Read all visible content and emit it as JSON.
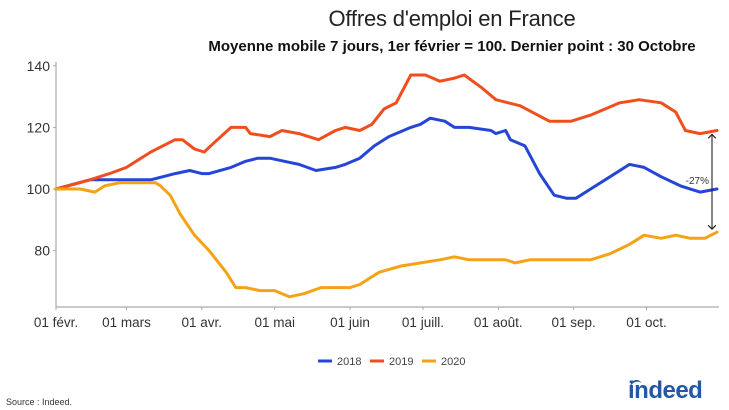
{
  "chart_data": {
    "type": "line",
    "title": "Offres d'emploi en France",
    "subtitle": "Moyenne mobile 7 jours, 1er février = 100. Dernier point : 30 Octobre",
    "xlabel": "",
    "ylabel": "",
    "ylim": [
      62,
      140
    ],
    "yticks": [
      80,
      100,
      120,
      140
    ],
    "ytick_labels": [
      "80",
      "100",
      "120",
      "140"
    ],
    "xlim_days": [
      0,
      272
    ],
    "xticks": [
      {
        "day": 0,
        "label": "01 févr."
      },
      {
        "day": 29,
        "label": "01 mars"
      },
      {
        "day": 60,
        "label": "01 avr."
      },
      {
        "day": 90,
        "label": "01 mai"
      },
      {
        "day": 121,
        "label": "01 juin"
      },
      {
        "day": 151,
        "label": "01 juill."
      },
      {
        "day": 182,
        "label": "01 août."
      },
      {
        "day": 213,
        "label": "01 sep."
      },
      {
        "day": 243,
        "label": "01 oct."
      }
    ],
    "x_unit": "days since 1 Feb",
    "grid": false,
    "legend_position": "bottom",
    "series": [
      {
        "name": "2018",
        "color": "#2445d8",
        "points": [
          [
            0,
            100
          ],
          [
            14,
            103
          ],
          [
            29,
            103
          ],
          [
            39,
            103
          ],
          [
            49,
            105
          ],
          [
            55,
            106
          ],
          [
            60,
            105
          ],
          [
            63,
            105
          ],
          [
            72,
            107
          ],
          [
            78,
            109
          ],
          [
            83,
            110
          ],
          [
            88,
            110
          ],
          [
            94,
            109
          ],
          [
            100,
            108
          ],
          [
            107,
            106
          ],
          [
            115,
            107
          ],
          [
            119,
            108
          ],
          [
            125,
            110
          ],
          [
            131,
            114
          ],
          [
            137,
            117
          ],
          [
            146,
            120
          ],
          [
            150,
            121
          ],
          [
            154,
            123
          ],
          [
            160,
            122
          ],
          [
            164,
            120
          ],
          [
            170,
            120
          ],
          [
            179,
            119
          ],
          [
            181,
            118
          ],
          [
            185,
            119
          ],
          [
            187,
            116
          ],
          [
            193,
            114
          ],
          [
            199,
            105
          ],
          [
            205,
            98
          ],
          [
            210,
            97
          ],
          [
            214,
            97
          ],
          [
            220,
            100
          ],
          [
            228,
            104
          ],
          [
            236,
            108
          ],
          [
            242,
            107
          ],
          [
            249,
            104
          ],
          [
            257,
            101
          ],
          [
            265,
            99
          ],
          [
            272,
            100
          ]
        ]
      },
      {
        "name": "2019",
        "color": "#f04e1c",
        "points": [
          [
            0,
            100
          ],
          [
            14,
            103
          ],
          [
            22,
            105
          ],
          [
            29,
            107
          ],
          [
            39,
            112
          ],
          [
            49,
            116
          ],
          [
            52,
            116
          ],
          [
            57,
            113
          ],
          [
            61,
            112
          ],
          [
            65,
            115
          ],
          [
            72,
            120
          ],
          [
            78,
            120
          ],
          [
            80,
            118
          ],
          [
            88,
            117
          ],
          [
            93,
            119
          ],
          [
            100,
            118
          ],
          [
            108,
            116
          ],
          [
            115,
            119
          ],
          [
            119,
            120
          ],
          [
            125,
            119
          ],
          [
            130,
            121
          ],
          [
            135,
            126
          ],
          [
            140,
            128
          ],
          [
            146,
            137
          ],
          [
            152,
            137
          ],
          [
            158,
            135
          ],
          [
            164,
            136
          ],
          [
            168,
            137
          ],
          [
            175,
            133
          ],
          [
            181,
            129
          ],
          [
            191,
            127
          ],
          [
            203,
            122
          ],
          [
            212,
            122
          ],
          [
            220,
            124
          ],
          [
            232,
            128
          ],
          [
            240,
            129
          ],
          [
            249,
            128
          ],
          [
            255,
            125
          ],
          [
            259,
            119
          ],
          [
            265,
            118
          ],
          [
            272,
            119
          ]
        ]
      },
      {
        "name": "2020",
        "color": "#f5a316",
        "points": [
          [
            0,
            100
          ],
          [
            10,
            100
          ],
          [
            16,
            99
          ],
          [
            20,
            101
          ],
          [
            26,
            102
          ],
          [
            35,
            102
          ],
          [
            41,
            102
          ],
          [
            43,
            101
          ],
          [
            47,
            98
          ],
          [
            51,
            92
          ],
          [
            57,
            85
          ],
          [
            63,
            80
          ],
          [
            70,
            73
          ],
          [
            74,
            68
          ],
          [
            78,
            68
          ],
          [
            84,
            67
          ],
          [
            90,
            67
          ],
          [
            96,
            65
          ],
          [
            102,
            66
          ],
          [
            109,
            68
          ],
          [
            115,
            68
          ],
          [
            121,
            68
          ],
          [
            125,
            69
          ],
          [
            133,
            73
          ],
          [
            142,
            75
          ],
          [
            150,
            76
          ],
          [
            158,
            77
          ],
          [
            164,
            78
          ],
          [
            170,
            77
          ],
          [
            179,
            77
          ],
          [
            185,
            77
          ],
          [
            189,
            76
          ],
          [
            195,
            77
          ],
          [
            203,
            77
          ],
          [
            212,
            77
          ],
          [
            220,
            77
          ],
          [
            228,
            79
          ],
          [
            236,
            82
          ],
          [
            242,
            85
          ],
          [
            249,
            84
          ],
          [
            255,
            85
          ],
          [
            261,
            84
          ],
          [
            267,
            84
          ],
          [
            272,
            86
          ]
        ]
      }
    ],
    "annotation": {
      "text": "-27%",
      "at_day": 272,
      "from_value": 119,
      "to_value": 86
    }
  },
  "footer": {
    "source": "Source : Indeed.",
    "logo": "indeed"
  }
}
